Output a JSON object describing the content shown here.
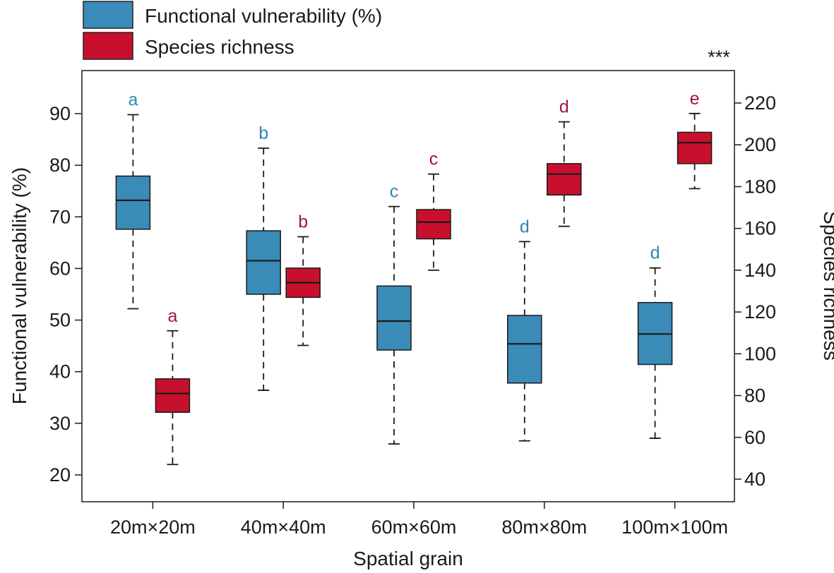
{
  "chart_data": {
    "type": "boxplot",
    "title": "",
    "xlabel": "Spatial grain",
    "ylabel_left": "Functional vulnerability (%)",
    "ylabel_right": "Species richness",
    "categories": [
      "20m×20m",
      "40m×40m",
      "60m×60m",
      "80m×80m",
      "100m×100m"
    ],
    "left_axis": {
      "range": [
        15,
        97
      ],
      "ticks": [
        20,
        30,
        40,
        50,
        60,
        70,
        80,
        90
      ]
    },
    "right_axis": {
      "range": [
        31,
        233
      ],
      "ticks": [
        40,
        60,
        80,
        100,
        120,
        140,
        160,
        180,
        200,
        220
      ]
    },
    "significance": "***",
    "series": [
      {
        "name": "Functional vulnerability (%)",
        "axis": "left",
        "color": "#3a8bb8",
        "letter_color": "#2e86b5",
        "boxes": [
          {
            "whisker_low": 52.2,
            "q1": 67.6,
            "median": 73.2,
            "q3": 77.9,
            "whisker_high": 89.8,
            "letter": "a"
          },
          {
            "whisker_low": 36.4,
            "q1": 55.0,
            "median": 61.5,
            "q3": 67.3,
            "whisker_high": 83.3,
            "letter": "b"
          },
          {
            "whisker_low": 26.0,
            "q1": 44.2,
            "median": 49.8,
            "q3": 56.6,
            "whisker_high": 72.0,
            "letter": "c"
          },
          {
            "whisker_low": 26.6,
            "q1": 37.8,
            "median": 45.4,
            "q3": 50.9,
            "whisker_high": 65.2,
            "letter": "d"
          },
          {
            "whisker_low": 27.1,
            "q1": 41.4,
            "median": 47.3,
            "q3": 53.4,
            "whisker_high": 60.1,
            "letter": "d"
          }
        ]
      },
      {
        "name": "Species richness",
        "axis": "right",
        "color": "#c8102e",
        "letter_color": "#a3173a",
        "boxes": [
          {
            "whisker_low": 47,
            "q1": 72,
            "median": 81,
            "q3": 88,
            "whisker_high": 111,
            "letter": "a"
          },
          {
            "whisker_low": 104,
            "q1": 127,
            "median": 134,
            "q3": 141,
            "whisker_high": 156,
            "letter": "b"
          },
          {
            "whisker_low": 140,
            "q1": 155,
            "median": 163,
            "q3": 169,
            "whisker_high": 186,
            "letter": "c"
          },
          {
            "whisker_low": 161,
            "q1": 176,
            "median": 186,
            "q3": 191,
            "whisker_high": 211,
            "letter": "d"
          },
          {
            "whisker_low": 179,
            "q1": 191,
            "median": 201,
            "q3": 206,
            "whisker_high": 215,
            "letter": "e"
          }
        ]
      }
    ]
  }
}
